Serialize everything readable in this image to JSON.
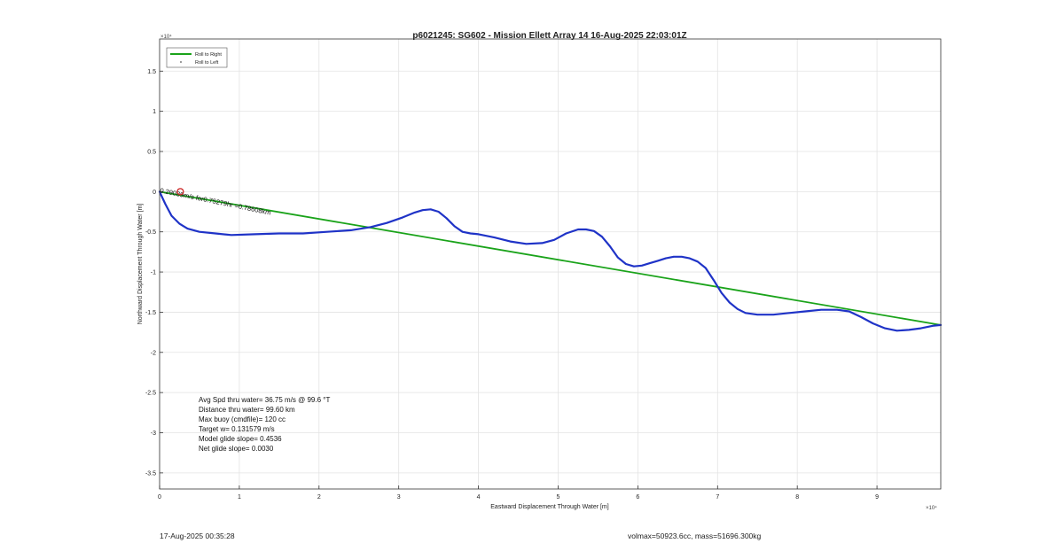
{
  "chart_data": {
    "type": "line",
    "title": "p6021245: SG602 - Mission Ellett Array 14 16-Aug-2025 22:03:01Z",
    "xlabel": "Eastward Displacement Through Water [m]",
    "ylabel": "Northward Displacement Through Water [m]",
    "x_exponent_label": "×10⁴",
    "y_exponent_label": "×10⁴",
    "xlim": [
      0,
      98000
    ],
    "ylim": [
      -37000,
      19000
    ],
    "xticks": [
      0,
      10000,
      20000,
      30000,
      40000,
      50000,
      60000,
      70000,
      80000,
      90000
    ],
    "xtick_labels": [
      "0",
      "1",
      "2",
      "3",
      "4",
      "5",
      "6",
      "7",
      "8",
      "9"
    ],
    "yticks": [
      15000,
      10000,
      5000,
      0,
      -5000,
      -10000,
      -15000,
      -20000,
      -25000,
      -30000,
      -35000
    ],
    "ytick_labels": [
      "1.5",
      "1",
      "0.5",
      "0",
      "-0.5",
      "-1",
      "-1.5",
      "-2",
      "-2.5",
      "-3",
      "-3.5"
    ],
    "grid": true,
    "legend_position": "top-left",
    "legend": [
      {
        "label": "Roll to Right",
        "color": "#1aa31a",
        "style": "line"
      },
      {
        "label": "Roll to Left",
        "color": "#555555",
        "style": "dot"
      }
    ],
    "series": [
      {
        "name": "Roll to Right",
        "kind": "net-displacement",
        "color": "#1aa31a",
        "x": [
          0,
          98000
        ],
        "y": [
          0,
          -16600
        ]
      },
      {
        "kind": "track",
        "color": "#1f33c7",
        "x": [
          0,
          700,
          1500,
          2500,
          3500,
          5000,
          7000,
          9000,
          12000,
          15000,
          18000,
          21000,
          24000,
          26500,
          28500,
          30500,
          32000,
          33000,
          34000,
          35000,
          36000,
          37000,
          38000,
          39000,
          40000,
          42000,
          44000,
          46000,
          48000,
          49500,
          51000,
          52500,
          53500,
          54500,
          55500,
          56500,
          57500,
          58500,
          59500,
          60500,
          61500,
          62500,
          63500,
          64500,
          65500,
          66500,
          67500,
          68500,
          69500,
          70500,
          71500,
          72500,
          73500,
          75000,
          77000,
          79000,
          81000,
          83000,
          85000,
          86500,
          88000,
          89500,
          91000,
          92500,
          94000,
          95500,
          97000,
          98000
        ],
        "y": [
          0,
          -1500,
          -3000,
          -4000,
          -4600,
          -5000,
          -5200,
          -5400,
          -5300,
          -5200,
          -5200,
          -5000,
          -4800,
          -4400,
          -3900,
          -3200,
          -2600,
          -2300,
          -2200,
          -2500,
          -3300,
          -4300,
          -5000,
          -5200,
          -5300,
          -5700,
          -6200,
          -6500,
          -6400,
          -6000,
          -5200,
          -4700,
          -4700,
          -4900,
          -5600,
          -6800,
          -8200,
          -9000,
          -9300,
          -9200,
          -8900,
          -8600,
          -8300,
          -8100,
          -8100,
          -8300,
          -8700,
          -9500,
          -11000,
          -12600,
          -13800,
          -14600,
          -15100,
          -15300,
          -15300,
          -15100,
          -14900,
          -14700,
          -14700,
          -14900,
          -15600,
          -16400,
          -17000,
          -17300,
          -17200,
          -17000,
          -16700,
          -16600
        ]
      }
    ],
    "annotations": [
      {
        "text": "0.29089m/s for0.75279hr =0.78608km",
        "x": 0,
        "y": -100,
        "rotation_deg": 11.5
      },
      {
        "text": "Surface drift marker",
        "marker": "circle",
        "color": "#cc2222",
        "x": 2600,
        "y": 0
      }
    ],
    "stats": [
      "Avg Spd thru water= 36.75 m/s @  99.6 °T",
      "Distance thru water= 99.60 km",
      "Max buoy (cmdfile)= 120 cc",
      "Target w= 0.131579 m/s",
      "Model glide slope= 0.4536",
      "Net glide slope= 0.0030"
    ]
  },
  "footer": {
    "timestamp": "17-Aug-2025 00:35:28",
    "volume_mass": "volmax=50923.6cc, mass=51696.300kg"
  }
}
